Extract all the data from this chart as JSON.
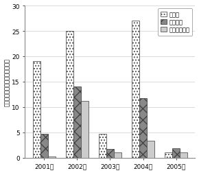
{
  "years": [
    "2001年",
    "2002年",
    "2003年",
    "2004年",
    "2005年"
  ],
  "early": [
    19.0,
    25.0,
    4.7,
    27.0,
    1.0
  ],
  "standard": [
    4.7,
    14.0,
    1.7,
    11.7,
    1.9
  ],
  "late": [
    0.3,
    11.2,
    1.0,
    3.3,
    1.0
  ],
  "legend_labels": [
    "早播き",
    "標準播き",
    "田植え後播種"
  ],
  "ylabel": "ダイズわい化病発病株率（％）",
  "ylim": [
    0,
    30
  ],
  "yticks": [
    0,
    5,
    10,
    15,
    20,
    25,
    30
  ],
  "bar_width": 0.23,
  "background_color": "#ffffff"
}
